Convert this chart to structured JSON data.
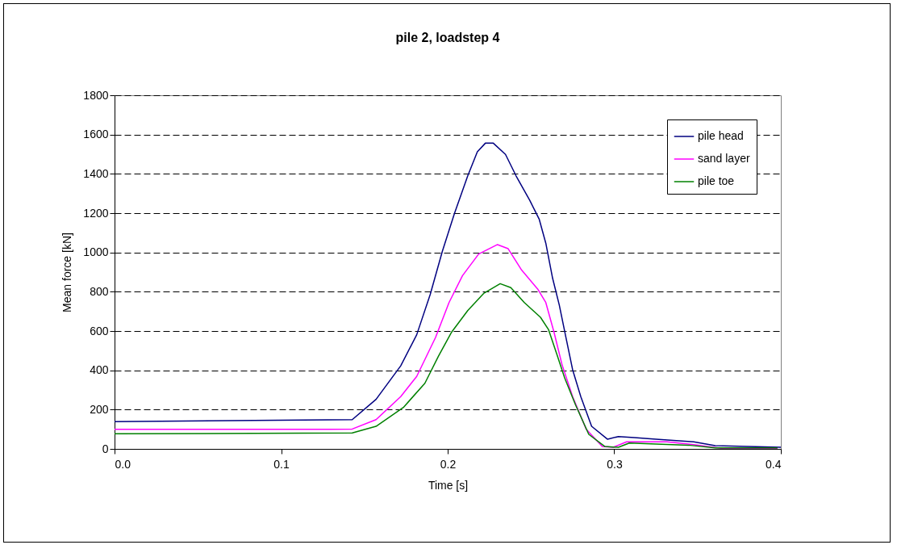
{
  "chart_data": {
    "type": "line",
    "title": "pile 2, loadstep 4",
    "xlabel": "Time [s]",
    "ylabel": "Mean force [kN]",
    "xlim": [
      0,
      0.4
    ],
    "xticks": [
      {
        "value": 0,
        "label": "0.0"
      },
      0.1,
      0.2,
      0.3,
      0.4
    ],
    "ylim": [
      0,
      1800
    ],
    "yticks": [
      0,
      200,
      400,
      600,
      800,
      1000,
      1200,
      1400,
      1600,
      1800
    ],
    "grid": "y",
    "legend": "top right",
    "marker": "none",
    "line_style": "solid",
    "series": [
      {
        "name": "pile head",
        "color": "#000080",
        "x": [
          0,
          0.1427,
          0.157,
          0.1718,
          0.1814,
          0.1895,
          0.1968,
          0.204,
          0.212,
          0.2178,
          0.2226,
          0.2274,
          0.2347,
          0.2411,
          0.2492,
          0.2549,
          0.2589,
          0.263,
          0.267,
          0.271,
          0.275,
          0.2799,
          0.2864,
          0.296,
          0.3025,
          0.312,
          0.325,
          0.3477,
          0.3606,
          0.4
        ],
        "values": [
          139,
          149,
          252,
          423,
          581,
          786,
          1006,
          1197,
          1389,
          1512,
          1556,
          1556,
          1499,
          1389,
          1266,
          1170,
          1047,
          868,
          732,
          567,
          403,
          266,
          115,
          49,
          63,
          58,
          49,
          36,
          16,
          8
        ]
      },
      {
        "name": "sand layer",
        "color": "#ff00ff",
        "x": [
          0,
          0.1298,
          0.1427,
          0.157,
          0.1718,
          0.1814,
          0.1927,
          0.2008,
          0.2089,
          0.2186,
          0.2299,
          0.2363,
          0.2444,
          0.254,
          0.2589,
          0.2638,
          0.2686,
          0.275,
          0.2831,
          0.2928,
          0.2993,
          0.3074,
          0.3317,
          0.3477,
          0.364,
          0.398
        ],
        "values": [
          100,
          100,
          101,
          149,
          266,
          369,
          567,
          745,
          882,
          992,
          1040,
          1019,
          910,
          814,
          745,
          595,
          430,
          266,
          101,
          12,
          8,
          36,
          36,
          22,
          3,
          2
        ]
      },
      {
        "name": "pile toe",
        "color": "#008000",
        "x": [
          0,
          0.1427,
          0.157,
          0.1734,
          0.1863,
          0.1944,
          0.2024,
          0.212,
          0.2218,
          0.2315,
          0.2379,
          0.246,
          0.2557,
          0.2605,
          0.2654,
          0.2702,
          0.2767,
          0.2847,
          0.2944,
          0.3025,
          0.309,
          0.3445,
          0.3606,
          0.398
        ],
        "values": [
          77,
          81,
          115,
          211,
          334,
          471,
          595,
          704,
          793,
          841,
          821,
          745,
          670,
          608,
          485,
          362,
          225,
          74,
          12,
          8,
          30,
          19,
          5,
          5
        ]
      }
    ]
  }
}
